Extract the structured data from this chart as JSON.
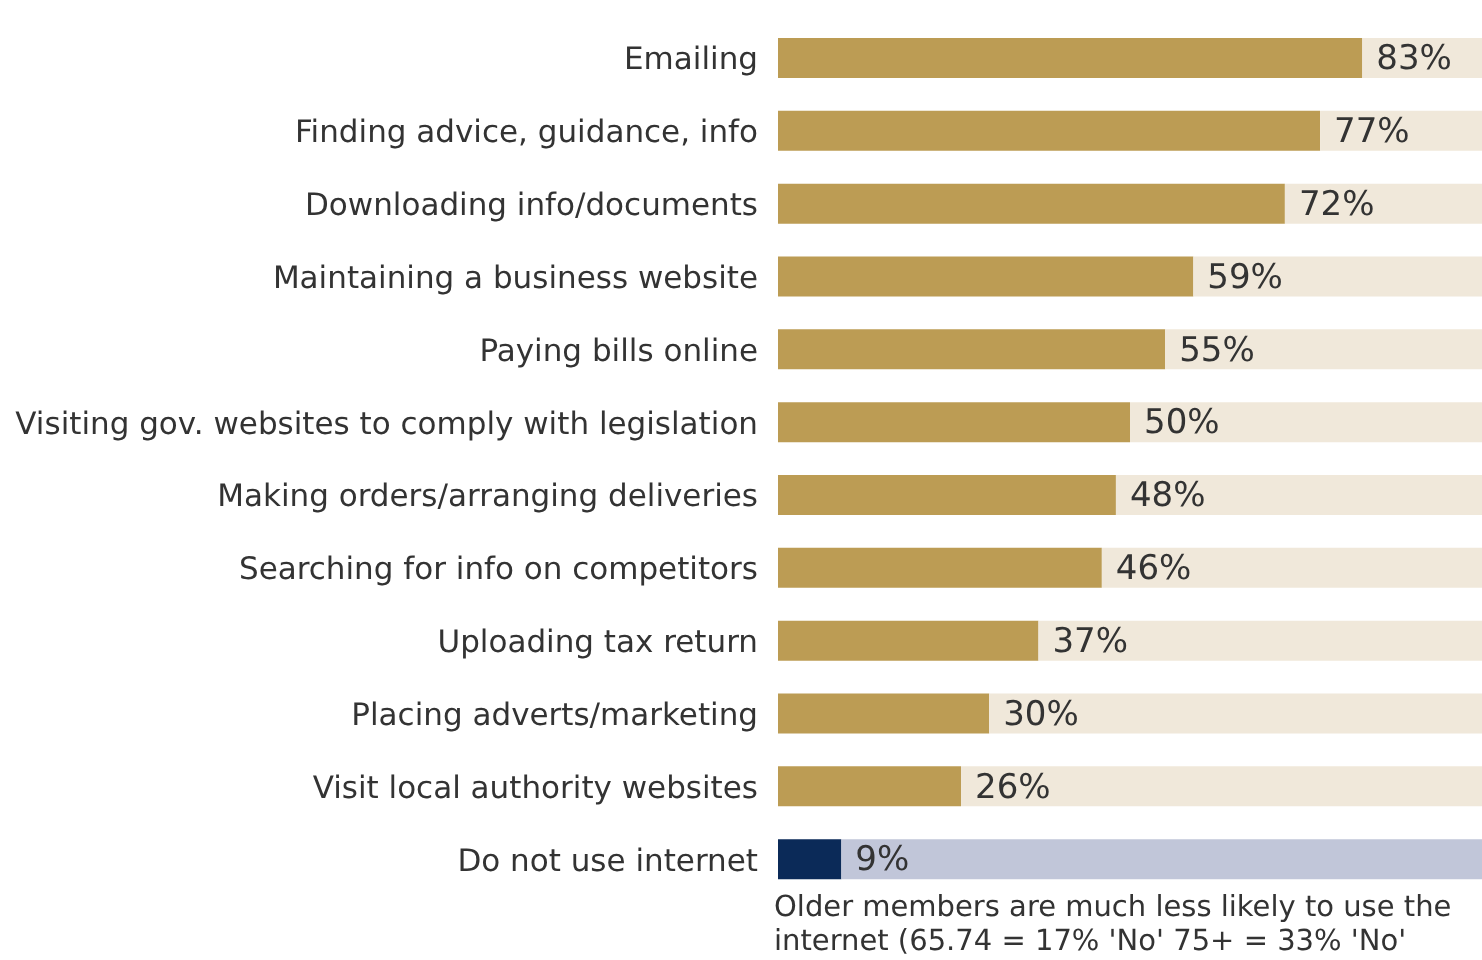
{
  "chart_data": {
    "type": "bar",
    "orientation": "horizontal",
    "stacked": true,
    "categories": [
      "Emailing",
      "Finding advice, guidance, info",
      "Downloading info/documents",
      "Maintaining a business website",
      "Paying bills online",
      "Visiting gov. websites to comply with legislation",
      "Making orders/arranging deliveries",
      "Searching for info on competitors",
      "Uploading tax return",
      "Placing adverts/marketing",
      "Visit local authority websites",
      "Do not use internet"
    ],
    "series": [
      {
        "values": [
          83,
          77,
          72,
          59,
          55,
          50,
          48,
          46,
          37,
          30,
          26,
          9
        ],
        "value_labels": [
          "83%",
          "77%",
          "72%",
          "59%",
          "55%",
          "50%",
          "48%",
          "46%",
          "37%",
          "30%",
          "26%",
          "9%"
        ],
        "colors": [
          "#bc9c54",
          "#bc9c54",
          "#bc9c54",
          "#bc9c54",
          "#bc9c54",
          "#bc9c54",
          "#bc9c54",
          "#bc9c54",
          "#bc9c54",
          "#bc9c54",
          "#bc9c54",
          "#0b2a58"
        ]
      },
      {
        "values": [
          17,
          23,
          28,
          41,
          45,
          50,
          52,
          54,
          63,
          70,
          74,
          91
        ],
        "colors": [
          "#f0e8da",
          "#f0e8da",
          "#f0e8da",
          "#f0e8da",
          "#f0e8da",
          "#f0e8da",
          "#f0e8da",
          "#f0e8da",
          "#f0e8da",
          "#f0e8da",
          "#f0e8da",
          "#c1c6d9"
        ]
      }
    ],
    "xlim": [
      0,
      100
    ],
    "tick_labels": "y",
    "grid": false,
    "legend": false,
    "annotations": [
      "Older members are much less likely to use the internet (65.74 = 17% 'No' 75+ = 33% 'No'"
    ]
  }
}
